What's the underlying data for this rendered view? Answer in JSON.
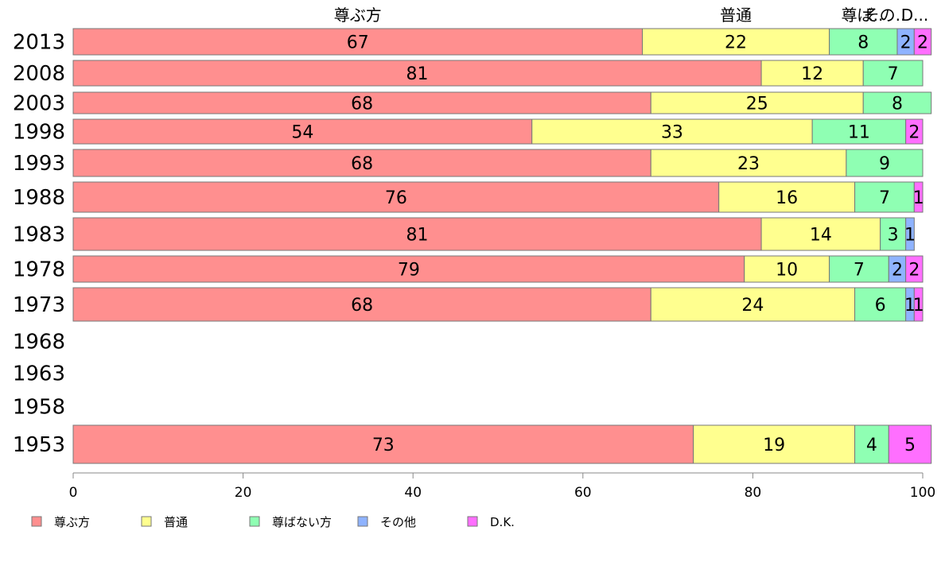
{
  "chart_data": {
    "type": "bar",
    "orientation": "horizontal",
    "stacked": true,
    "categories": [
      "2013",
      "2008",
      "2003",
      "1998",
      "1993",
      "1988",
      "1983",
      "1978",
      "1973",
      "1968",
      "1963",
      "1958",
      "1953"
    ],
    "series": [
      {
        "name": "尊ぶ方",
        "color": "#ff8f8f",
        "values": [
          67,
          81,
          68,
          54,
          68,
          76,
          81,
          79,
          68,
          null,
          null,
          null,
          73
        ]
      },
      {
        "name": "普通",
        "color": "#ffff8f",
        "values": [
          22,
          12,
          25,
          33,
          23,
          16,
          14,
          10,
          24,
          null,
          null,
          null,
          19
        ]
      },
      {
        "name": "尊ばない方",
        "color": "#8fffb3",
        "values": [
          8,
          7,
          8,
          11,
          9,
          7,
          3,
          7,
          6,
          null,
          null,
          null,
          4
        ]
      },
      {
        "name": "その他",
        "color": "#8fb3ff",
        "values": [
          2,
          0,
          0,
          0,
          0,
          0,
          1,
          2,
          1,
          null,
          null,
          null,
          0
        ]
      },
      {
        "name": "D.K.",
        "color": "#ff6fff",
        "values": [
          2,
          0,
          0,
          2,
          0,
          1,
          0,
          2,
          1,
          null,
          null,
          null,
          5
        ]
      }
    ],
    "top_labels": [
      "尊ぶ方",
      "普通",
      "尊ば..",
      "その..",
      "D..."
    ],
    "xlim": [
      0,
      100
    ],
    "xticks": [
      "0",
      "20",
      "40",
      "60",
      "80",
      "100"
    ],
    "grid": false,
    "legend_position": "bottom-left"
  }
}
